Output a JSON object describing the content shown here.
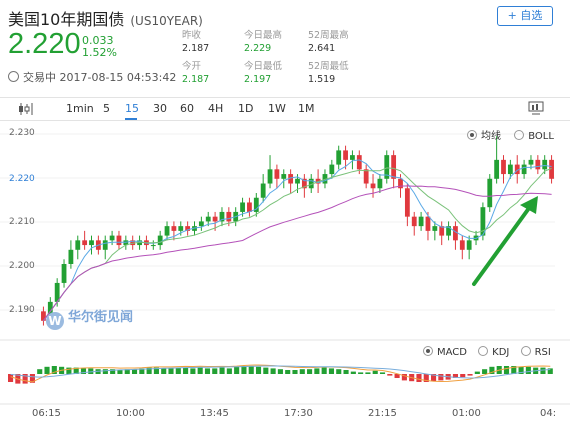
{
  "header": {
    "title": "美国10年期国债",
    "code": "(US10YEAR)",
    "add_button": "+ 自选",
    "price": "2.220",
    "change": "0.033",
    "change_pct": "1.52%",
    "status": "交易中 2017-08-15 04:53:42"
  },
  "stats": {
    "prev_close_label": "昨收",
    "prev_close": "2.187",
    "open_label": "今开",
    "open": "2.187",
    "high_label": "今日最高",
    "high": "2.229",
    "low_label": "今日最低",
    "low": "2.197",
    "w52_high_label": "52周最高",
    "w52_high": "2.641",
    "w52_low_label": "52周最低",
    "w52_low": "1.519"
  },
  "tabs": [
    "1min",
    "5",
    "15",
    "30",
    "60",
    "4H",
    "1D",
    "1W",
    "1M"
  ],
  "active_tab": "15",
  "main_legend": {
    "ma": "均线",
    "boll": "BOLL",
    "selected": "均线"
  },
  "sub_legend": {
    "macd": "MACD",
    "kdj": "KDJ",
    "rsi": "RSI",
    "selected": "MACD"
  },
  "watermark": "华尔街见闻",
  "watermark_logo": "W",
  "colors": {
    "up": "#22a033",
    "down": "#e0393e",
    "accent": "#2f7fd6",
    "ma_short": "#5aa9e6",
    "ma_mid": "#7ac27a",
    "ma_long": "#b451b9"
  },
  "chart_data": {
    "type": "candlestick",
    "yticks": [
      "2.230",
      "2.220",
      "2.210",
      "2.200",
      "2.190"
    ],
    "highlight_ytick": "2.220",
    "xticks": [
      "06:15",
      "10:00",
      "13:45",
      "17:30",
      "21:15",
      "01:00",
      "04:"
    ],
    "ylim": [
      2.187,
      2.232
    ],
    "candles": [
      [
        2.192,
        2.19,
        2.193,
        2.189
      ],
      [
        2.19,
        2.194,
        2.195,
        2.189
      ],
      [
        2.194,
        2.198,
        2.199,
        2.193
      ],
      [
        2.198,
        2.202,
        2.203,
        2.197
      ],
      [
        2.202,
        2.205,
        2.207,
        2.201
      ],
      [
        2.205,
        2.207,
        2.208,
        2.203
      ],
      [
        2.207,
        2.206,
        2.209,
        2.205
      ],
      [
        2.206,
        2.207,
        2.208,
        2.204
      ],
      [
        2.207,
        2.205,
        2.208,
        2.204
      ],
      [
        2.205,
        2.207,
        2.208,
        2.203
      ],
      [
        2.207,
        2.208,
        2.209,
        2.206
      ],
      [
        2.208,
        2.206,
        2.209,
        2.205
      ],
      [
        2.206,
        2.207,
        2.208,
        2.205
      ],
      [
        2.207,
        2.206,
        2.208,
        2.205
      ],
      [
        2.206,
        2.207,
        2.208,
        2.205
      ],
      [
        2.207,
        2.206,
        2.208,
        2.205
      ],
      [
        2.206,
        2.206,
        2.207,
        2.205
      ],
      [
        2.206,
        2.208,
        2.209,
        2.205
      ],
      [
        2.208,
        2.21,
        2.211,
        2.207
      ],
      [
        2.21,
        2.209,
        2.211,
        2.207
      ],
      [
        2.209,
        2.21,
        2.211,
        2.208
      ],
      [
        2.21,
        2.209,
        2.211,
        2.208
      ],
      [
        2.209,
        2.21,
        2.211,
        2.208
      ],
      [
        2.21,
        2.211,
        2.212,
        2.209
      ],
      [
        2.211,
        2.212,
        2.213,
        2.21
      ],
      [
        2.212,
        2.211,
        2.213,
        2.209
      ],
      [
        2.211,
        2.213,
        2.214,
        2.21
      ],
      [
        2.213,
        2.211,
        2.214,
        2.21
      ],
      [
        2.211,
        2.213,
        2.214,
        2.21
      ],
      [
        2.213,
        2.215,
        2.216,
        2.212
      ],
      [
        2.215,
        2.213,
        2.216,
        2.212
      ],
      [
        2.213,
        2.216,
        2.217,
        2.212
      ],
      [
        2.216,
        2.219,
        2.221,
        2.215
      ],
      [
        2.219,
        2.222,
        2.225,
        2.218
      ],
      [
        2.222,
        2.22,
        2.223,
        2.218
      ],
      [
        2.22,
        2.221,
        2.222,
        2.218
      ],
      [
        2.221,
        2.219,
        2.222,
        2.217
      ],
      [
        2.219,
        2.22,
        2.221,
        2.217
      ],
      [
        2.22,
        2.218,
        2.221,
        2.216
      ],
      [
        2.218,
        2.22,
        2.221,
        2.217
      ],
      [
        2.22,
        2.219,
        2.222,
        2.217
      ],
      [
        2.219,
        2.221,
        2.222,
        2.218
      ],
      [
        2.221,
        2.223,
        2.224,
        2.22
      ],
      [
        2.223,
        2.226,
        2.227,
        2.222
      ],
      [
        2.226,
        2.224,
        2.227,
        2.222
      ],
      [
        2.224,
        2.225,
        2.226,
        2.222
      ],
      [
        2.225,
        2.222,
        2.226,
        2.221
      ],
      [
        2.222,
        2.219,
        2.223,
        2.218
      ],
      [
        2.219,
        2.218,
        2.221,
        2.216
      ],
      [
        2.218,
        2.22,
        2.221,
        2.217
      ],
      [
        2.22,
        2.225,
        2.226,
        2.219
      ],
      [
        2.225,
        2.22,
        2.226,
        2.218
      ],
      [
        2.22,
        2.218,
        2.221,
        2.216
      ],
      [
        2.218,
        2.212,
        2.219,
        2.21
      ],
      [
        2.212,
        2.21,
        2.213,
        2.208
      ],
      [
        2.21,
        2.212,
        2.213,
        2.209
      ],
      [
        2.212,
        2.209,
        2.213,
        2.207
      ],
      [
        2.209,
        2.21,
        2.211,
        2.207
      ],
      [
        2.21,
        2.208,
        2.211,
        2.206
      ],
      [
        2.208,
        2.21,
        2.211,
        2.207
      ],
      [
        2.21,
        2.207,
        2.211,
        2.205
      ],
      [
        2.207,
        2.205,
        2.208,
        2.203
      ],
      [
        2.205,
        2.207,
        2.208,
        2.203
      ],
      [
        2.207,
        2.208,
        2.209,
        2.206
      ],
      [
        2.208,
        2.214,
        2.215,
        2.207
      ],
      [
        2.214,
        2.22,
        2.221,
        2.213
      ],
      [
        2.22,
        2.224,
        2.229,
        2.219
      ],
      [
        2.224,
        2.221,
        2.225,
        2.219
      ],
      [
        2.221,
        2.223,
        2.224,
        2.22
      ],
      [
        2.223,
        2.221,
        2.225,
        2.219
      ],
      [
        2.221,
        2.223,
        2.224,
        2.22
      ],
      [
        2.223,
        2.224,
        2.225,
        2.222
      ],
      [
        2.224,
        2.222,
        2.225,
        2.221
      ],
      [
        2.222,
        2.224,
        2.225,
        2.221
      ],
      [
        2.224,
        2.22,
        2.225,
        2.219
      ]
    ],
    "macd_histogram": [
      -1.0,
      -1.2,
      -1.2,
      -1.1,
      0.6,
      0.9,
      1.0,
      0.9,
      0.8,
      0.8,
      0.7,
      0.7,
      0.6,
      0.6,
      0.6,
      0.5,
      0.6,
      0.6,
      0.7,
      0.8,
      0.8,
      0.7,
      0.7,
      0.8,
      0.8,
      0.7,
      0.8,
      0.7,
      0.7,
      0.8,
      0.7,
      0.9,
      1.0,
      1.0,
      0.9,
      0.8,
      0.7,
      0.6,
      0.5,
      0.5,
      0.6,
      0.6,
      0.7,
      0.8,
      0.7,
      0.6,
      0.5,
      0.3,
      0.2,
      0.2,
      0.4,
      0.2,
      -0.2,
      -0.5,
      -0.8,
      -0.9,
      -1.0,
      -1.0,
      -0.9,
      -0.8,
      -0.7,
      -0.5,
      -0.4,
      -0.2,
      0.3,
      0.6,
      0.9,
      1.0,
      1.0,
      1.0,
      0.9,
      0.9,
      0.8,
      0.8,
      0.7
    ]
  }
}
